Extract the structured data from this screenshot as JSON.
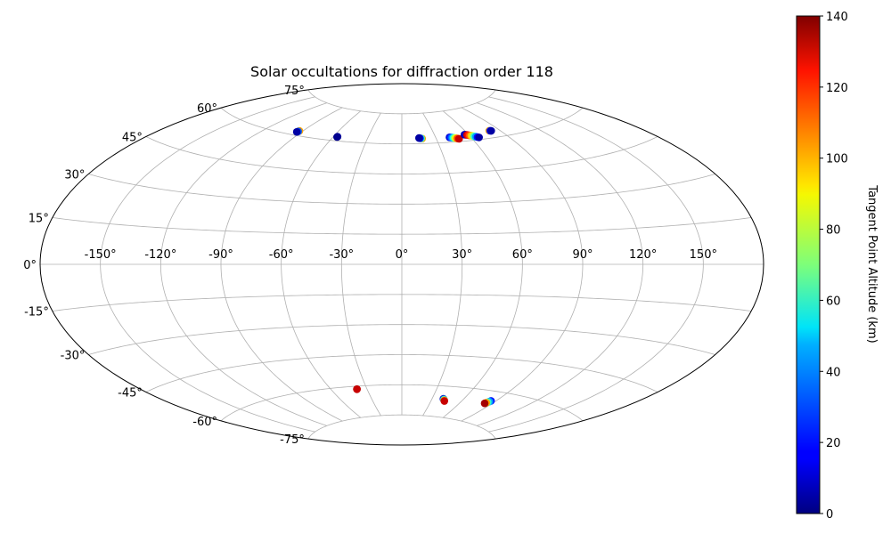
{
  "chart_data": {
    "type": "scatter",
    "projection": "aitoff",
    "title": "Solar occultations for diffraction order 118",
    "grid": true,
    "lon_ticks": [
      "-150°",
      "-120°",
      "-90°",
      "-60°",
      "-30°",
      "0°",
      "30°",
      "60°",
      "90°",
      "120°",
      "150°"
    ],
    "lat_ticks": [
      "75°",
      "60°",
      "45°",
      "30°",
      "15°",
      "0°",
      "-15°",
      "-30°",
      "-45°",
      "-60°",
      "-75°"
    ],
    "lon_values": [
      -150,
      -120,
      -90,
      -60,
      -30,
      0,
      30,
      60,
      90,
      120,
      150
    ],
    "lat_values": [
      75,
      60,
      45,
      30,
      15,
      0,
      -15,
      -30,
      -45,
      -60,
      -75
    ],
    "colorbar": {
      "label": "Tangent Point Altitude (km)",
      "colormap": "jet",
      "range": [
        0,
        140
      ],
      "ticks": [
        "0",
        "20",
        "40",
        "60",
        "80",
        "100",
        "120",
        "140"
      ],
      "tick_values": [
        0,
        20,
        40,
        60,
        80,
        100,
        120,
        140
      ]
    },
    "occultations": [
      {
        "points": [
          [
            -92.8,
            62.1,
            100
          ],
          [
            -93.2,
            61.8,
            30
          ],
          [
            -93.7,
            61.5,
            5
          ]
        ]
      },
      {
        "points": [
          [
            -56.5,
            62.0,
            5
          ],
          [
            -56.6,
            61.8,
            2
          ]
        ]
      },
      {
        "points": [
          [
            17.8,
            62.5,
            100
          ],
          [
            17.0,
            62.6,
            60
          ],
          [
            16.0,
            62.7,
            20
          ],
          [
            15.2,
            62.8,
            5
          ]
        ]
      },
      {
        "points": [
          [
            42.0,
            62.4,
            10
          ],
          [
            42.8,
            62.3,
            20
          ],
          [
            43.6,
            62.2,
            30
          ],
          [
            44.4,
            62.1,
            40
          ],
          [
            45.2,
            62.0,
            55
          ],
          [
            46.0,
            61.9,
            70
          ],
          [
            46.8,
            61.8,
            85
          ],
          [
            47.6,
            61.6,
            100
          ],
          [
            48.4,
            61.5,
            115
          ],
          [
            49.2,
            61.3,
            130
          ]
        ]
      },
      {
        "points": [
          [
            56.5,
            63.0,
            5
          ],
          [
            57.4,
            62.9,
            10
          ],
          [
            58.5,
            62.8,
            130
          ],
          [
            59.5,
            62.6,
            120
          ],
          [
            60.5,
            62.4,
            110
          ],
          [
            61.5,
            62.2,
            95
          ],
          [
            62.5,
            62.0,
            80
          ],
          [
            63.5,
            61.7,
            60
          ],
          [
            64.5,
            61.5,
            40
          ],
          [
            65.5,
            61.2,
            20
          ],
          [
            66.5,
            61.0,
            5
          ]
        ]
      },
      {
        "points": [
          [
            81.0,
            63.3,
            100
          ],
          [
            81.8,
            63.2,
            20
          ],
          [
            82.5,
            63.1,
            5
          ]
        ]
      },
      {
        "points": [
          [
            -38.5,
            -61.4,
            135
          ],
          [
            -38.6,
            -61.5,
            130
          ]
        ]
      },
      {
        "points": [
          [
            41.0,
            -66.2,
            5
          ],
          [
            41.6,
            -66.4,
            30
          ],
          [
            42.2,
            -66.6,
            60
          ],
          [
            42.8,
            -66.9,
            100
          ],
          [
            43.4,
            -67.2,
            130
          ]
        ]
      },
      {
        "points": [
          [
            85.8,
            -64.4,
            20
          ],
          [
            85.2,
            -64.8,
            40
          ],
          [
            84.6,
            -65.2,
            60
          ],
          [
            84.0,
            -65.5,
            100
          ],
          [
            83.4,
            -65.9,
            135
          ]
        ]
      }
    ]
  }
}
